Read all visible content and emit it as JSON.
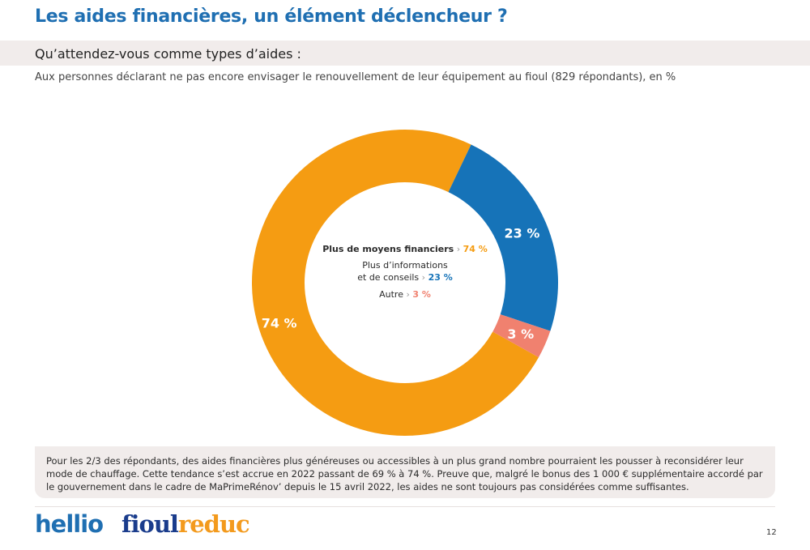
{
  "header": {
    "title": "Les aides financières, un élément déclencheur ?",
    "question": "Qu’attendez-vous comme types d’aides :",
    "subtitle": "Aux personnes déclarant ne pas encore envisager le renouvellement de leur équipement au fioul (829 répondants), en %"
  },
  "chart_data": {
    "type": "pie",
    "variant": "donut",
    "categories": [
      "Plus de moyens financiers",
      "Plus d’informations et de conseils",
      "Autre"
    ],
    "legend_lines": [
      [
        "Plus de moyens financiers"
      ],
      [
        "Plus d’informations",
        "et de conseils"
      ],
      [
        "Autre"
      ]
    ],
    "values": [
      74,
      23,
      3
    ],
    "labels": [
      "74 %",
      "23 %",
      "3 %"
    ],
    "colors": [
      "#f59c12",
      "#1673b8",
      "#f0816f"
    ],
    "legend_placement": "center"
  },
  "note": {
    "text": " Pour les 2/3 des répondants, des aides financières plus généreuses ou accessibles à un plus grand nombre pourraient les pousser à reconsidérer leur mode de chauffage. Cette tendance s’est accrue en 2022 passant de 69 % à 74 %. Preuve que, malgré le bonus des 1 000 € supplémentaire accordé par le gouvernement dans le cadre de MaPrimeRénov’ depuis le 15 avril 2022, les aides ne sont toujours pas considérées comme suffisantes."
  },
  "footer": {
    "logo_hellio": "hellio",
    "logo_fioul_a": "fioul",
    "logo_fioul_b": "reduc",
    "page_number": "12"
  }
}
